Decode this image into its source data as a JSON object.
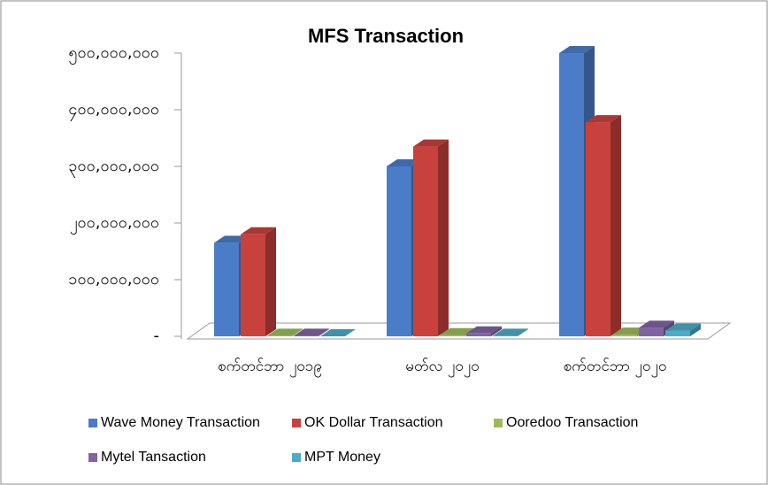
{
  "chart_data": {
    "type": "bar3d",
    "title": "MFS Transaction",
    "categories": [
      "စက်တင်ဘာ ၂၀၁၉",
      "မတ်လ ၂၀၂၀",
      "စက်တင်ဘာ ၂၀၂၀"
    ],
    "series": [
      {
        "name": "Wave Money Transaction",
        "color": "#4a7cc7",
        "values": [
          165000000,
          300000000,
          500000000
        ]
      },
      {
        "name": "OK Dollar Transaction",
        "color": "#c9413c",
        "values": [
          180000000,
          335000000,
          378000000
        ]
      },
      {
        "name": "Ooredoo Transaction",
        "color": "#9bbb59",
        "values": [
          1000000,
          2000000,
          3000000
        ]
      },
      {
        "name": "Mytel Tansaction",
        "color": "#8064a2",
        "values": [
          1000000,
          5000000,
          15000000
        ]
      },
      {
        "name": "MPT Money",
        "color": "#4bacc6",
        "values": [
          0,
          1000000,
          10000000
        ]
      }
    ],
    "ylim": [
      0,
      500000000
    ],
    "yticks": [
      {
        "value": 0,
        "label": "-"
      },
      {
        "value": 100000000,
        "label": "၁၀၀,၀၀၀,၀၀၀"
      },
      {
        "value": 200000000,
        "label": "၂၀၀,၀၀၀,၀၀၀"
      },
      {
        "value": 300000000,
        "label": "၃၀၀,၀၀၀,၀၀၀"
      },
      {
        "value": 400000000,
        "label": "၄၀၀,၀၀၀,၀၀၀"
      },
      {
        "value": 500000000,
        "label": "၅၀၀,၀၀၀,၀၀၀"
      }
    ]
  }
}
